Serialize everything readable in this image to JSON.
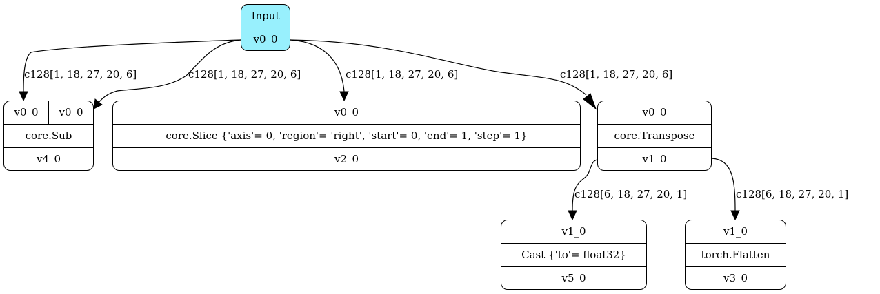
{
  "nodes": {
    "input": {
      "title": "Input",
      "output": "v0_0"
    },
    "sub": {
      "in_a": "v0_0",
      "in_b": "v0_0",
      "op": "core.Sub",
      "output": "v4_0"
    },
    "slice": {
      "input": "v0_0",
      "op": "core.Slice {'axis'= 0, 'region'= 'right', 'start'= 0, 'end'= 1, 'step'= 1}",
      "output": "v2_0"
    },
    "transpose": {
      "input": "v0_0",
      "op": "core.Transpose",
      "output": "v1_0"
    },
    "cast": {
      "input": "v1_0",
      "op": "Cast {'to'= float32}",
      "output": "v5_0"
    },
    "flatten": {
      "input": "v1_0",
      "op": "torch.Flatten",
      "output": "v3_0"
    }
  },
  "edges": [
    {
      "from": "input",
      "to": "sub_a",
      "label": "c128[1, 18, 27, 20, 6]"
    },
    {
      "from": "input",
      "to": "sub_b",
      "label": "c128[1, 18, 27, 20, 6]"
    },
    {
      "from": "input",
      "to": "slice",
      "label": "c128[1, 18, 27, 20, 6]"
    },
    {
      "from": "input",
      "to": "transpose",
      "label": "c128[1, 18, 27, 20, 6]"
    },
    {
      "from": "transpose",
      "to": "cast",
      "label": "c128[6, 18, 27, 20, 1]"
    },
    {
      "from": "transpose",
      "to": "flatten",
      "label": "c128[6, 18, 27, 20, 1]"
    }
  ]
}
